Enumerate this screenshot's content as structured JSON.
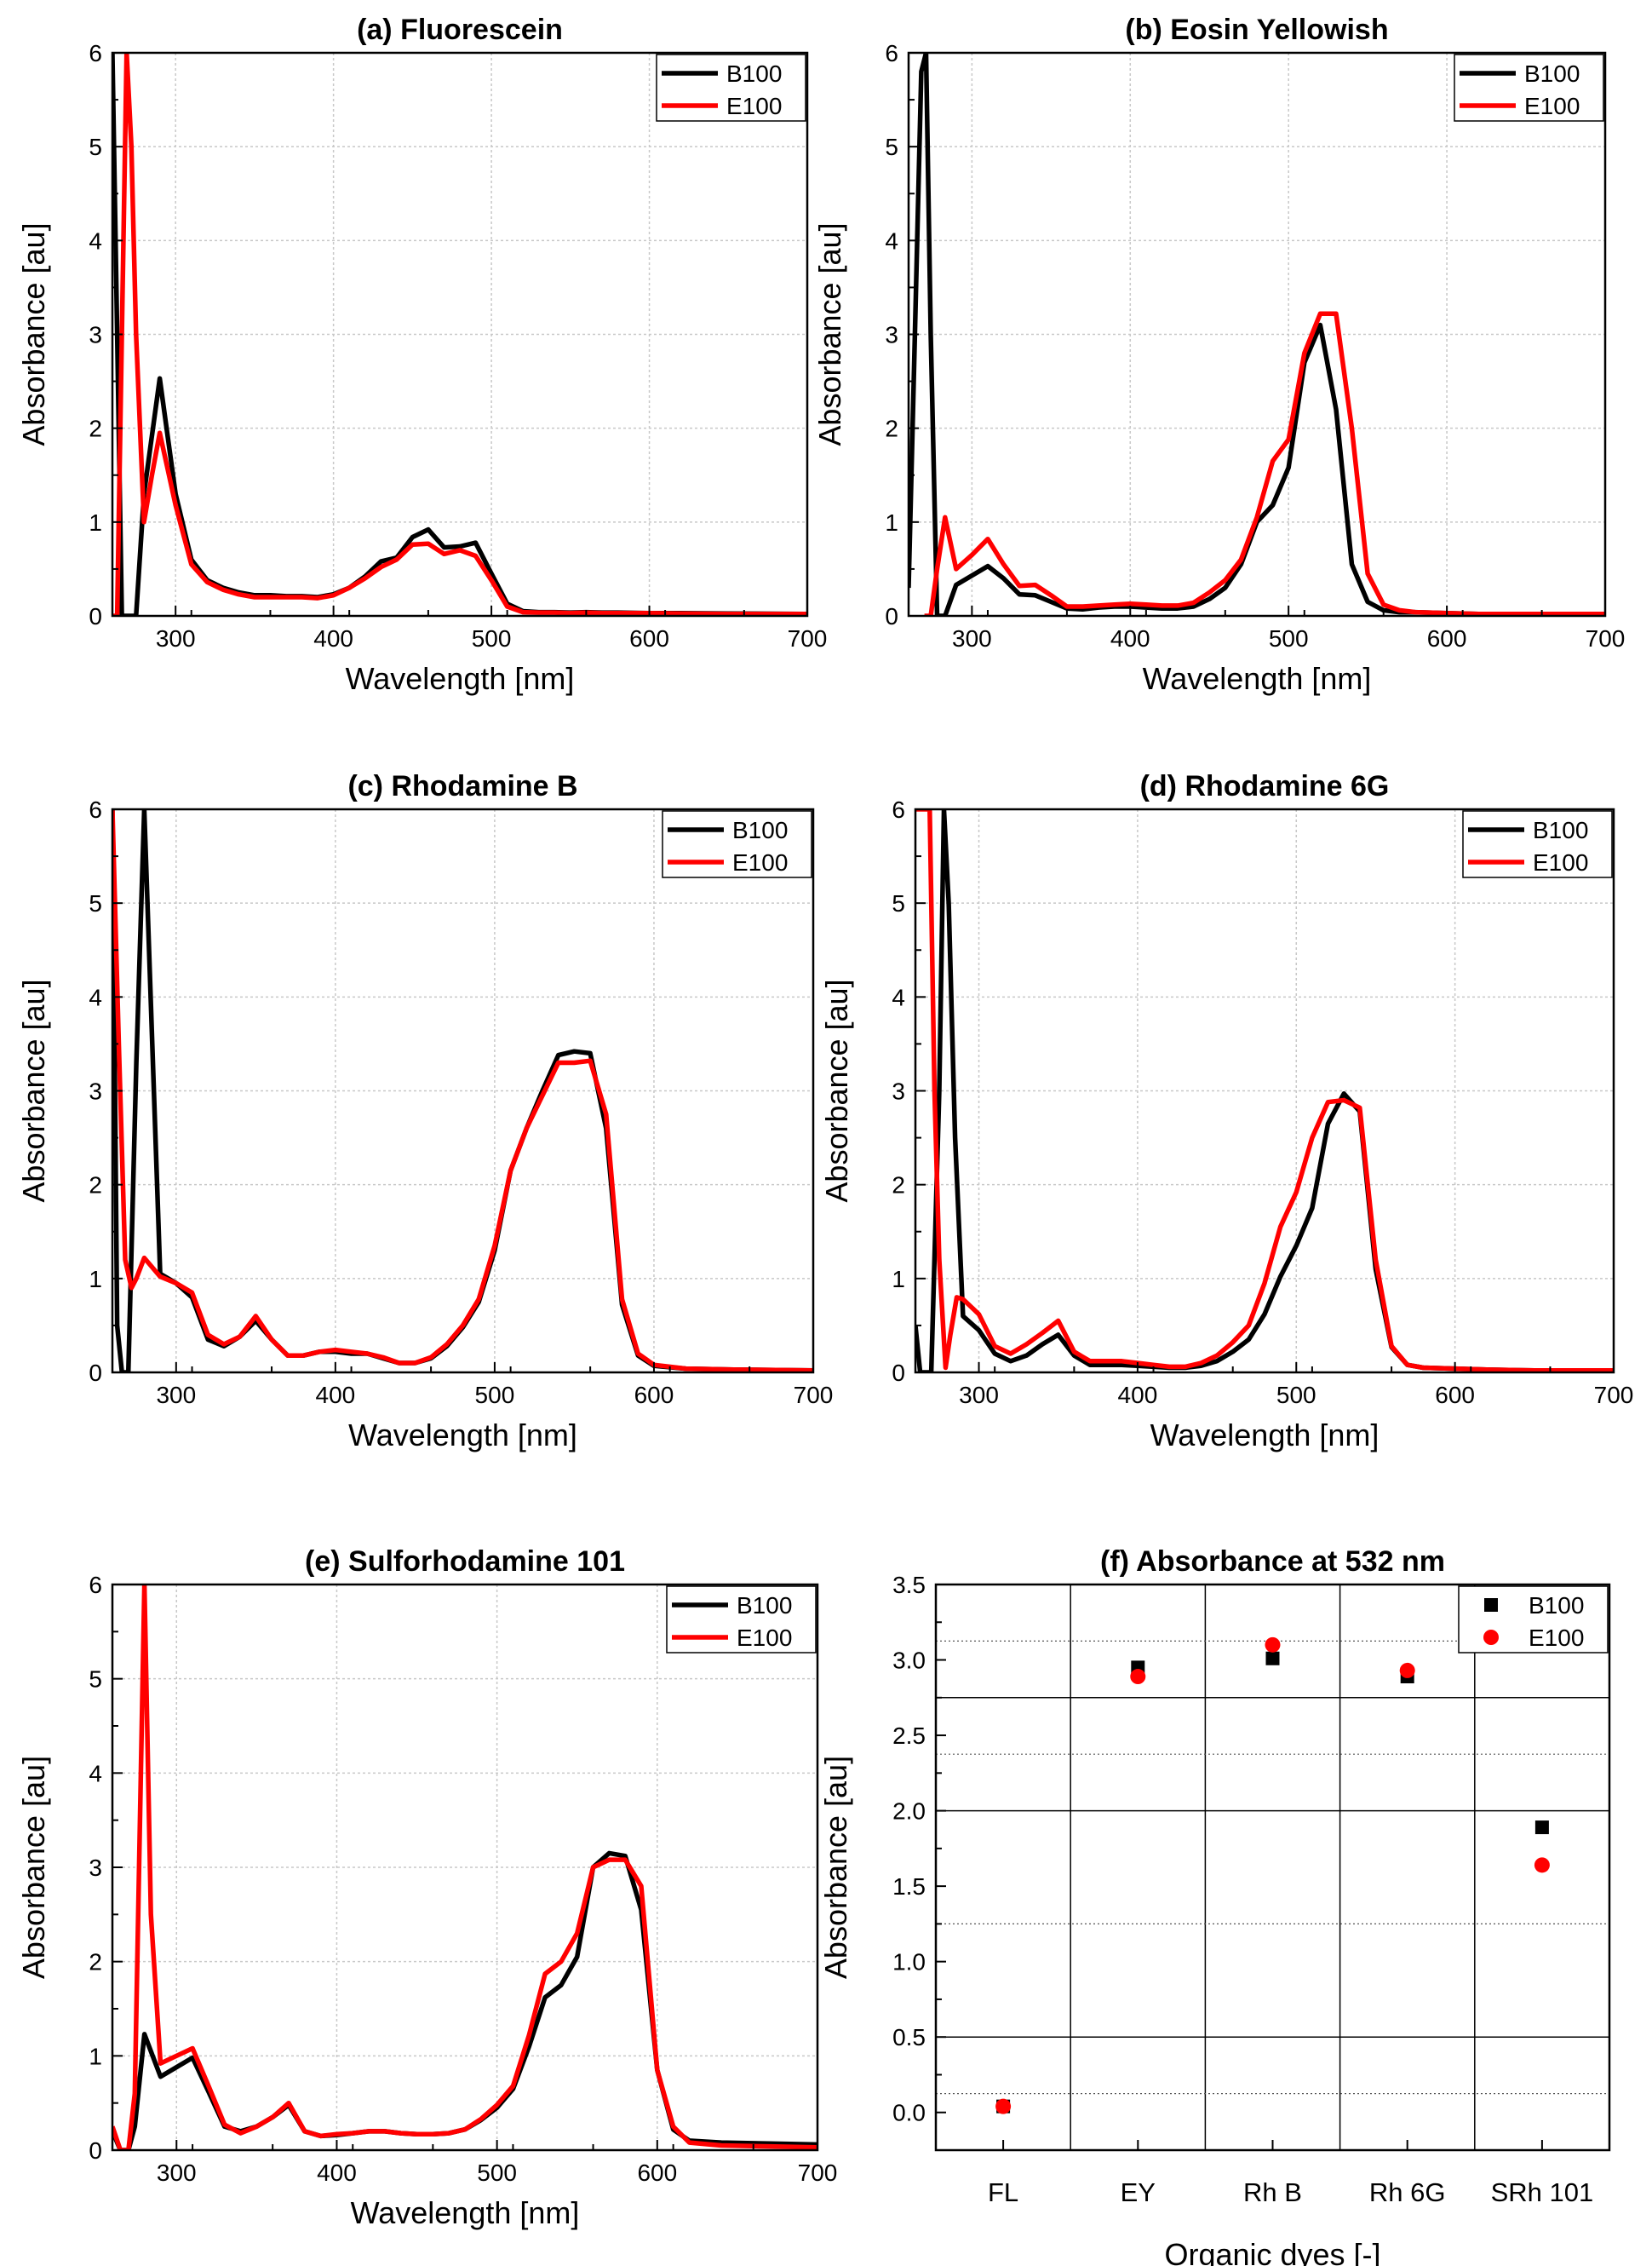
{
  "chart_data": [
    {
      "id": "a",
      "type": "line",
      "title": "(a) Fluorescein",
      "xlabel": "Wavelength [nm]",
      "ylabel": "Absorbance [au]",
      "xlim": [
        260,
        700
      ],
      "ylim": [
        0,
        6
      ],
      "xticks": [
        300,
        400,
        500,
        600,
        700
      ],
      "yticks": [
        0,
        1,
        2,
        3,
        4,
        5,
        6
      ],
      "grid": true,
      "legend": "top-right",
      "series": [
        {
          "name": "B100",
          "color": "#000000",
          "x": [
            260,
            263,
            266,
            270,
            275,
            280,
            290,
            300,
            310,
            320,
            330,
            340,
            350,
            360,
            370,
            380,
            390,
            400,
            410,
            420,
            430,
            440,
            450,
            460,
            470,
            480,
            490,
            500,
            510,
            520,
            530,
            540,
            550,
            560,
            570,
            580,
            600,
            620,
            650,
            700
          ],
          "y": [
            6,
            3,
            0,
            0,
            0,
            1.3,
            2.53,
            1.3,
            0.6,
            0.38,
            0.3,
            0.25,
            0.22,
            0.22,
            0.21,
            0.21,
            0.2,
            0.23,
            0.3,
            0.42,
            0.58,
            0.62,
            0.84,
            0.92,
            0.73,
            0.74,
            0.78,
            0.45,
            0.13,
            0.05,
            0.04,
            0.04,
            0.035,
            0.04,
            0.035,
            0.035,
            0.03,
            0.03,
            0.025,
            0.02
          ]
        },
        {
          "name": "E100",
          "color": "#ff0000",
          "x": [
            260,
            263,
            266,
            269,
            272,
            275,
            280,
            285,
            290,
            300,
            310,
            320,
            330,
            340,
            350,
            360,
            370,
            380,
            390,
            400,
            410,
            420,
            430,
            440,
            450,
            460,
            470,
            480,
            490,
            500,
            510,
            520,
            530,
            540,
            550,
            560,
            570,
            580,
            600,
            620,
            650,
            700
          ],
          "y": [
            0,
            0,
            3,
            6,
            5,
            3,
            1,
            1.5,
            1.95,
            1.18,
            0.55,
            0.36,
            0.28,
            0.23,
            0.2,
            0.2,
            0.2,
            0.2,
            0.19,
            0.22,
            0.3,
            0.4,
            0.52,
            0.6,
            0.76,
            0.77,
            0.66,
            0.7,
            0.64,
            0.38,
            0.1,
            0.04,
            0.035,
            0.035,
            0.03,
            0.035,
            0.03,
            0.03,
            0.03,
            0.025,
            0.02,
            0.02
          ]
        }
      ]
    },
    {
      "id": "b",
      "type": "line",
      "title": "(b) Eosin Yellowish",
      "xlabel": "Wavelength [nm]",
      "ylabel": "Absorbance [au]",
      "xlim": [
        260,
        700
      ],
      "ylim": [
        0,
        6
      ],
      "xticks": [
        300,
        400,
        500,
        600,
        700
      ],
      "yticks": [
        0,
        1,
        2,
        3,
        4,
        5,
        6
      ],
      "grid": true,
      "legend": "top-right",
      "series": [
        {
          "name": "B100",
          "color": "#000000",
          "x": [
            260,
            264,
            268,
            271,
            274,
            278,
            283,
            290,
            300,
            310,
            320,
            330,
            340,
            350,
            360,
            370,
            380,
            390,
            400,
            410,
            420,
            430,
            440,
            450,
            460,
            470,
            480,
            490,
            500,
            510,
            520,
            530,
            540,
            550,
            560,
            570,
            580,
            600,
            620,
            650,
            700
          ],
          "y": [
            0.3,
            3,
            5.8,
            6,
            3,
            0,
            0,
            0.33,
            0.43,
            0.53,
            0.4,
            0.23,
            0.22,
            0.15,
            0.08,
            0.07,
            0.09,
            0.1,
            0.1,
            0.09,
            0.08,
            0.08,
            0.1,
            0.18,
            0.3,
            0.55,
            1.0,
            1.18,
            1.58,
            2.7,
            3.1,
            2.2,
            0.55,
            0.15,
            0.06,
            0.04,
            0.04,
            0.03,
            0.02,
            0.02,
            0.02
          ]
        },
        {
          "name": "E100",
          "color": "#ff0000",
          "x": [
            270,
            274,
            278,
            283,
            290,
            300,
            310,
            320,
            330,
            340,
            350,
            360,
            370,
            380,
            390,
            400,
            410,
            420,
            430,
            440,
            450,
            460,
            470,
            480,
            490,
            500,
            510,
            520,
            530,
            540,
            550,
            560,
            570,
            580,
            600,
            620,
            650,
            700
          ],
          "y": [
            0,
            0,
            0.5,
            1.05,
            0.5,
            0.65,
            0.82,
            0.55,
            0.32,
            0.33,
            0.22,
            0.1,
            0.1,
            0.11,
            0.12,
            0.13,
            0.12,
            0.11,
            0.11,
            0.14,
            0.25,
            0.38,
            0.6,
            1.05,
            1.65,
            1.88,
            2.8,
            3.22,
            3.22,
            2.0,
            0.45,
            0.12,
            0.06,
            0.04,
            0.03,
            0.02,
            0.02,
            0.02
          ]
        }
      ]
    },
    {
      "id": "c",
      "type": "line",
      "title": "(c) Rhodamine B",
      "xlabel": "Wavelength [nm]",
      "ylabel": "Absorbance [au]",
      "xlim": [
        260,
        700
      ],
      "ylim": [
        0,
        6
      ],
      "xticks": [
        300,
        400,
        500,
        600,
        700
      ],
      "yticks": [
        0,
        1,
        2,
        3,
        4,
        5,
        6
      ],
      "grid": true,
      "legend": "top-right",
      "series": [
        {
          "name": "B100",
          "color": "#000000",
          "x": [
            260,
            263,
            266,
            270,
            275,
            280,
            285,
            290,
            300,
            310,
            320,
            330,
            340,
            350,
            360,
            370,
            380,
            390,
            400,
            410,
            420,
            430,
            440,
            450,
            460,
            470,
            480,
            490,
            500,
            510,
            520,
            530,
            540,
            550,
            560,
            570,
            580,
            590,
            600,
            620,
            650,
            700
          ],
          "y": [
            6,
            0.5,
            0,
            0,
            3.3,
            6,
            3.5,
            1.05,
            0.95,
            0.8,
            0.35,
            0.28,
            0.38,
            0.55,
            0.35,
            0.18,
            0.18,
            0.22,
            0.22,
            0.2,
            0.2,
            0.15,
            0.1,
            0.1,
            0.15,
            0.28,
            0.48,
            0.75,
            1.3,
            2.15,
            2.6,
            3.0,
            3.38,
            3.42,
            3.4,
            2.6,
            0.72,
            0.18,
            0.07,
            0.04,
            0.03,
            0.02
          ]
        },
        {
          "name": "E100",
          "color": "#ff0000",
          "x": [
            260,
            264,
            268,
            272,
            275,
            280,
            290,
            300,
            310,
            320,
            330,
            340,
            350,
            360,
            370,
            380,
            390,
            400,
            410,
            420,
            430,
            440,
            450,
            460,
            470,
            480,
            490,
            500,
            510,
            520,
            530,
            540,
            550,
            560,
            570,
            580,
            590,
            600,
            620,
            650,
            700
          ],
          "y": [
            6,
            3.5,
            1.2,
            0.9,
            1.0,
            1.22,
            1.02,
            0.95,
            0.85,
            0.4,
            0.3,
            0.38,
            0.6,
            0.35,
            0.18,
            0.18,
            0.22,
            0.24,
            0.22,
            0.2,
            0.16,
            0.1,
            0.1,
            0.16,
            0.3,
            0.5,
            0.78,
            1.35,
            2.15,
            2.6,
            2.95,
            3.3,
            3.3,
            3.32,
            2.75,
            0.78,
            0.2,
            0.08,
            0.04,
            0.03,
            0.02
          ]
        }
      ]
    },
    {
      "id": "d",
      "type": "line",
      "title": "(d) Rhodamine 6G",
      "xlabel": "Wavelength [nm]",
      "ylabel": "Absorbance [au]",
      "xlim": [
        260,
        700
      ],
      "ylim": [
        0,
        6
      ],
      "xticks": [
        300,
        400,
        500,
        600,
        700
      ],
      "yticks": [
        0,
        1,
        2,
        3,
        4,
        5,
        6
      ],
      "grid": true,
      "legend": "top-right",
      "series": [
        {
          "name": "B100",
          "color": "#000000",
          "x": [
            260,
            263,
            266,
            270,
            275,
            278,
            281,
            285,
            290,
            300,
            310,
            320,
            330,
            340,
            350,
            360,
            370,
            380,
            390,
            400,
            410,
            420,
            430,
            440,
            450,
            460,
            470,
            480,
            490,
            500,
            510,
            520,
            530,
            540,
            550,
            560,
            570,
            580,
            600,
            620,
            650,
            700
          ],
          "y": [
            0.5,
            0,
            0,
            0,
            3,
            6,
            5,
            2.5,
            0.6,
            0.45,
            0.2,
            0.12,
            0.18,
            0.3,
            0.4,
            0.18,
            0.08,
            0.08,
            0.08,
            0.07,
            0.06,
            0.05,
            0.05,
            0.07,
            0.12,
            0.22,
            0.35,
            0.62,
            1.02,
            1.35,
            1.75,
            2.65,
            2.97,
            2.78,
            1.1,
            0.27,
            0.08,
            0.05,
            0.04,
            0.03,
            0.02,
            0.02
          ]
        },
        {
          "name": "E100",
          "color": "#ff0000",
          "x": [
            260,
            265,
            269,
            272,
            275,
            279,
            282,
            286,
            290,
            300,
            310,
            320,
            330,
            340,
            350,
            360,
            370,
            380,
            390,
            400,
            410,
            420,
            430,
            440,
            450,
            460,
            470,
            480,
            490,
            500,
            510,
            520,
            530,
            540,
            550,
            560,
            570,
            580,
            600,
            620,
            650,
            700
          ],
          "y": [
            6,
            6,
            6,
            3,
            1.2,
            0.05,
            0.4,
            0.8,
            0.78,
            0.62,
            0.28,
            0.2,
            0.3,
            0.42,
            0.55,
            0.22,
            0.12,
            0.12,
            0.12,
            0.1,
            0.08,
            0.06,
            0.06,
            0.1,
            0.18,
            0.32,
            0.5,
            0.95,
            1.55,
            1.92,
            2.5,
            2.88,
            2.9,
            2.82,
            1.2,
            0.28,
            0.08,
            0.05,
            0.04,
            0.03,
            0.02,
            0.02
          ]
        }
      ]
    },
    {
      "id": "e",
      "type": "line",
      "title": "(e) Sulforhodamine 101",
      "xlabel": "Wavelength [nm]",
      "ylabel": "Absorbance [au]",
      "xlim": [
        260,
        700
      ],
      "ylim": [
        0,
        6
      ],
      "xticks": [
        300,
        400,
        500,
        600,
        700
      ],
      "yticks": [
        0,
        1,
        2,
        3,
        4,
        5,
        6
      ],
      "grid": true,
      "legend": "top-right",
      "series": [
        {
          "name": "B100",
          "color": "#000000",
          "x": [
            260,
            265,
            270,
            274,
            280,
            290,
            300,
            310,
            320,
            330,
            340,
            350,
            360,
            370,
            380,
            390,
            400,
            410,
            420,
            430,
            440,
            450,
            460,
            470,
            480,
            490,
            500,
            510,
            520,
            530,
            540,
            550,
            560,
            570,
            580,
            590,
            600,
            610,
            620,
            640,
            670,
            700
          ],
          "y": [
            0.2,
            0,
            0,
            0.25,
            1.23,
            0.78,
            0.88,
            0.98,
            0.62,
            0.25,
            0.2,
            0.25,
            0.35,
            0.48,
            0.2,
            0.15,
            0.16,
            0.18,
            0.2,
            0.2,
            0.18,
            0.17,
            0.17,
            0.18,
            0.22,
            0.32,
            0.45,
            0.65,
            1.1,
            1.62,
            1.75,
            2.05,
            3.0,
            3.15,
            3.12,
            2.55,
            0.85,
            0.22,
            0.1,
            0.08,
            0.07,
            0.06
          ]
        },
        {
          "name": "E100",
          "color": "#ff0000",
          "x": [
            260,
            265,
            270,
            274,
            280,
            284,
            290,
            300,
            310,
            320,
            330,
            340,
            350,
            360,
            370,
            380,
            390,
            400,
            410,
            420,
            430,
            440,
            450,
            460,
            470,
            480,
            490,
            500,
            510,
            520,
            530,
            540,
            550,
            560,
            570,
            580,
            590,
            600,
            610,
            620,
            640,
            670,
            700
          ],
          "y": [
            0.25,
            0,
            0,
            0.6,
            6,
            2.5,
            0.92,
            1.0,
            1.08,
            0.68,
            0.27,
            0.18,
            0.25,
            0.35,
            0.5,
            0.2,
            0.15,
            0.17,
            0.18,
            0.2,
            0.2,
            0.18,
            0.17,
            0.17,
            0.18,
            0.22,
            0.33,
            0.48,
            0.68,
            1.22,
            1.87,
            2.0,
            2.3,
            3.0,
            3.08,
            3.08,
            2.8,
            0.85,
            0.25,
            0.08,
            0.05,
            0.04,
            0.03
          ]
        }
      ]
    },
    {
      "id": "f",
      "type": "scatter",
      "title": "(f) Absorbance at 532 nm",
      "xlabel": "Organic dyes [-]",
      "ylabel": "Absorbance [au]",
      "categories": [
        "FL",
        "EY",
        "Rh B",
        "Rh 6G",
        "SRh 101"
      ],
      "ylim": [
        -0.25,
        3.5
      ],
      "yticks": [
        "0.0",
        "0.5",
        "1.0",
        "1.5",
        "2.0",
        "2.5",
        "3.0",
        "3.5"
      ],
      "grid": true,
      "legend": "top-right",
      "series": [
        {
          "name": "B100",
          "color": "#000000",
          "marker": "square",
          "values": [
            0.04,
            2.95,
            3.01,
            2.89,
            1.89
          ]
        },
        {
          "name": "E100",
          "color": "#ff0000",
          "marker": "circle",
          "values": [
            0.04,
            2.89,
            3.1,
            2.93,
            1.64
          ]
        }
      ]
    }
  ]
}
